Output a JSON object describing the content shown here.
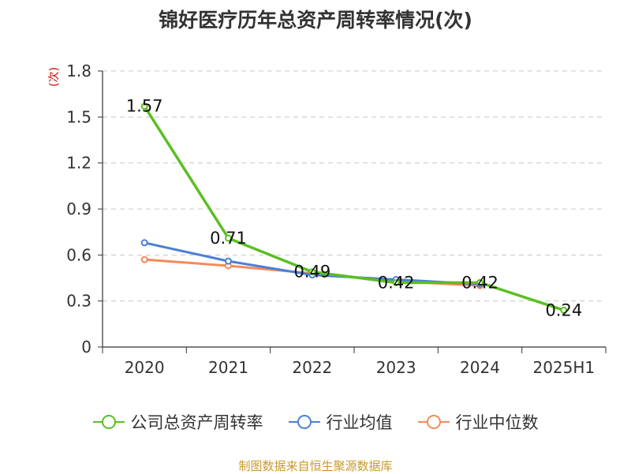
{
  "title": "锦好医疗历年总资产周转率情况(次)",
  "source": "制图数据来自恒生聚源数据库",
  "colors": {
    "company": "#5bbf22",
    "average": "#4a7fd6",
    "median": "#f58a5a"
  },
  "chart_data": {
    "type": "line",
    "title": "锦好医疗历年总资产周转率情况(次)",
    "ylabel": "(次)",
    "xlabel": "",
    "ylim": [
      0,
      1.8
    ],
    "yticks": [
      "0",
      "0.3",
      "0.6",
      "0.9",
      "1.2",
      "1.5",
      "1.8"
    ],
    "categories": [
      "2020",
      "2021",
      "2022",
      "2023",
      "2024",
      "2025H1"
    ],
    "grid": true,
    "legend_position": "bottom",
    "series": [
      {
        "name": "公司总资产周转率",
        "values": [
          1.57,
          0.71,
          0.49,
          0.42,
          0.42,
          0.24
        ],
        "labels": [
          "1.57",
          "0.71",
          "0.49",
          "0.42",
          "0.42",
          "0.24"
        ],
        "color": "#5bbf22"
      },
      {
        "name": "行业均值",
        "values": [
          0.68,
          0.56,
          0.47,
          0.44,
          0.41,
          null
        ],
        "color": "#4a7fd6"
      },
      {
        "name": "行业中位数",
        "values": [
          0.57,
          0.53,
          0.48,
          0.43,
          0.4,
          null
        ],
        "color": "#f58a5a"
      }
    ]
  }
}
